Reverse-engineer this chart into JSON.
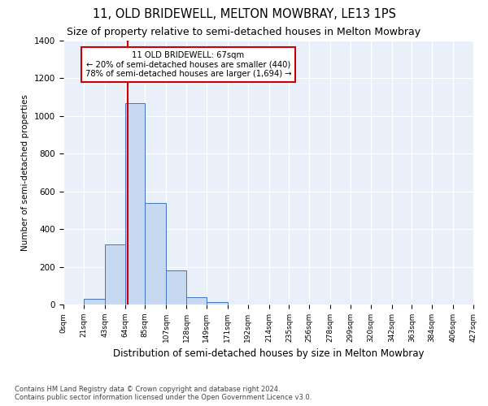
{
  "title1": "11, OLD BRIDEWELL, MELTON MOWBRAY, LE13 1PS",
  "title2": "Size of property relative to semi-detached houses in Melton Mowbray",
  "xlabel": "Distribution of semi-detached houses by size in Melton Mowbray",
  "ylabel": "Number of semi-detached properties",
  "footnote1": "Contains HM Land Registry data © Crown copyright and database right 2024.",
  "footnote2": "Contains public sector information licensed under the Open Government Licence v3.0.",
  "annotation_line1": "11 OLD BRIDEWELL: 67sqm",
  "annotation_line2": "← 20% of semi-detached houses are smaller (440)",
  "annotation_line3": "78% of semi-detached houses are larger (1,694) →",
  "bar_edges": [
    0,
    21,
    43,
    64,
    85,
    107,
    128,
    149,
    171,
    192,
    214,
    235,
    256,
    278,
    299,
    320,
    342,
    363,
    384,
    406,
    427
  ],
  "bar_heights": [
    0,
    30,
    320,
    1070,
    540,
    180,
    40,
    15,
    0,
    0,
    0,
    0,
    0,
    0,
    0,
    0,
    0,
    0,
    0,
    0
  ],
  "property_size": 67,
  "bar_color": "#c6d9f0",
  "bar_edge_color": "#4472c4",
  "vline_color": "#cc0000",
  "annotation_box_edge": "#cc0000",
  "annotation_box_face": "#ffffff",
  "ylim": [
    0,
    1400
  ],
  "yticks": [
    0,
    200,
    400,
    600,
    800,
    1000,
    1200,
    1400
  ],
  "bg_color": "#eaf0fa",
  "grid_color": "#ffffff",
  "title1_fontsize": 10.5,
  "title2_fontsize": 9,
  "tick_labels": [
    "0sqm",
    "21sqm",
    "43sqm",
    "64sqm",
    "85sqm",
    "107sqm",
    "128sqm",
    "149sqm",
    "171sqm",
    "192sqm",
    "214sqm",
    "235sqm",
    "256sqm",
    "278sqm",
    "299sqm",
    "320sqm",
    "342sqm",
    "363sqm",
    "384sqm",
    "406sqm",
    "427sqm"
  ]
}
